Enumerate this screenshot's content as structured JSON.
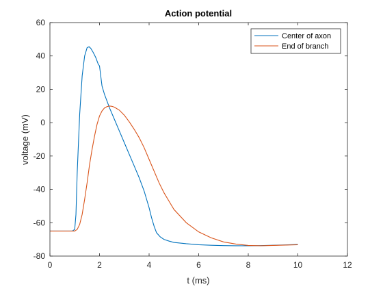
{
  "chart_data": {
    "type": "line",
    "title": "Action potential",
    "xlabel": "t (ms)",
    "ylabel": "voltage (mV)",
    "xlim": [
      0,
      12
    ],
    "ylim": [
      -80,
      60
    ],
    "xticks": [
      0,
      2,
      4,
      6,
      8,
      10,
      12
    ],
    "yticks": [
      -80,
      -60,
      -40,
      -20,
      0,
      20,
      40,
      60
    ],
    "grid": false,
    "legend_position": "top-right",
    "series": [
      {
        "name": "Center of axon",
        "color": "#0072bd",
        "x": [
          0,
          0.5,
          0.9,
          1.0,
          1.05,
          1.1,
          1.2,
          1.3,
          1.4,
          1.5,
          1.58,
          1.65,
          1.75,
          1.85,
          1.95,
          2.0,
          2.05,
          2.1,
          2.2,
          2.3,
          2.4,
          2.6,
          2.8,
          3.0,
          3.2,
          3.4,
          3.6,
          3.8,
          4.0,
          4.1,
          4.2,
          4.3,
          4.45,
          4.6,
          4.8,
          5.0,
          5.5,
          6.0,
          6.5,
          7.0,
          7.5,
          8.0,
          8.5,
          9.0,
          9.5,
          10.0
        ],
        "y": [
          -65,
          -65,
          -65,
          -64,
          -55,
          -30,
          5,
          28,
          40,
          45,
          45.5,
          44.5,
          42,
          39,
          35,
          34,
          28,
          22,
          17,
          13,
          9,
          2,
          -5,
          -12,
          -19,
          -26,
          -33,
          -41,
          -51,
          -57,
          -62,
          -66,
          -68.5,
          -70,
          -71,
          -71.8,
          -72.6,
          -73.2,
          -73.5,
          -73.7,
          -73.8,
          -73.8,
          -73.7,
          -73.5,
          -73.3,
          -73
        ]
      },
      {
        "name": "End of branch",
        "color": "#d95319",
        "x": [
          0,
          0.5,
          1.0,
          1.1,
          1.2,
          1.3,
          1.4,
          1.5,
          1.6,
          1.7,
          1.8,
          1.9,
          2.0,
          2.1,
          2.2,
          2.3,
          2.4,
          2.5,
          2.6,
          2.8,
          3.0,
          3.2,
          3.4,
          3.6,
          3.8,
          4.0,
          4.2,
          4.4,
          4.6,
          4.8,
          5.0,
          5.5,
          6.0,
          6.5,
          7.0,
          7.5,
          8.0,
          8.5,
          9.0,
          9.5,
          10.0
        ],
        "y": [
          -65,
          -65,
          -65,
          -64,
          -61,
          -55,
          -46,
          -36,
          -25,
          -16,
          -8,
          -1,
          4,
          7,
          8.8,
          9.6,
          10,
          9.8,
          9.3,
          7.5,
          4.5,
          0.5,
          -4,
          -9,
          -15,
          -22,
          -29,
          -36,
          -42,
          -47,
          -52,
          -60,
          -65.5,
          -69,
          -71.5,
          -72.8,
          -73.6,
          -73.8,
          -73.6,
          -73.4,
          -73.2
        ]
      }
    ]
  }
}
